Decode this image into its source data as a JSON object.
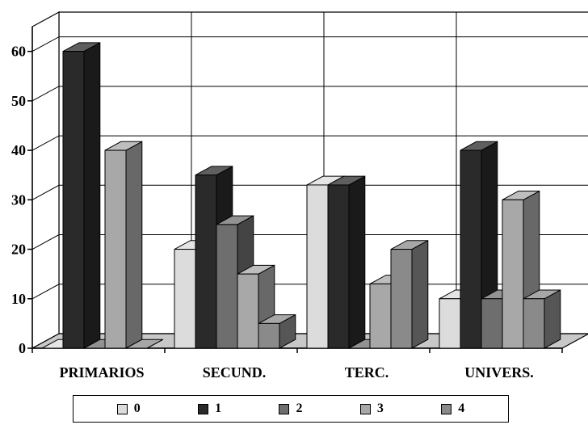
{
  "chart_data": {
    "type": "bar",
    "variant": "3d-clustered",
    "categories": [
      "PRIMARIOS",
      "SECUND.",
      "TERC.",
      "UNIVERS."
    ],
    "series": [
      {
        "name": "0",
        "color": "#dcdcdc",
        "values": [
          0,
          20,
          33,
          10
        ]
      },
      {
        "name": "1",
        "color": "#2a2a2a",
        "values": [
          60,
          35,
          33,
          40
        ]
      },
      {
        "name": "2",
        "color": "#6e6e6e",
        "values": [
          0,
          25,
          0,
          10
        ]
      },
      {
        "name": "3",
        "color": "#a8a8a8",
        "values": [
          40,
          15,
          13,
          30
        ]
      },
      {
        "name": "4",
        "color": "#8a8a8a",
        "values": [
          0,
          5,
          20,
          10
        ]
      }
    ],
    "yticks": [
      "0",
      "10",
      "20",
      "30",
      "40",
      "50",
      "60"
    ],
    "ylim": [
      0,
      65
    ],
    "grid": true,
    "legend_position": "bottom"
  }
}
